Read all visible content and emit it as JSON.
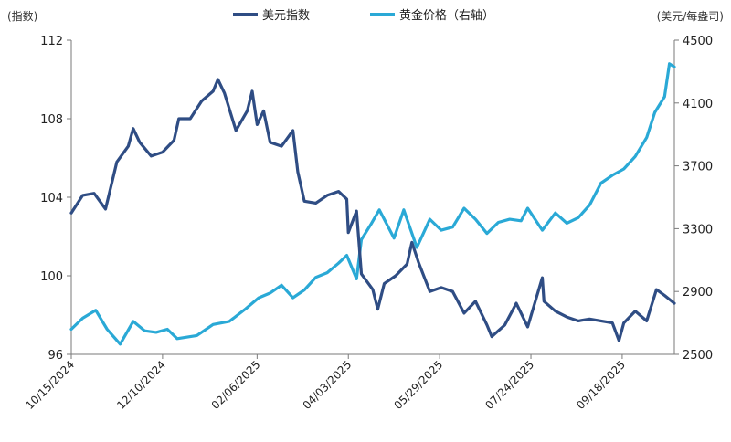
{
  "chart_data": {
    "type": "line",
    "left_axis_unit": "(指数)",
    "right_axis_unit": "(美元/每盎司)",
    "y_left_ticks": [
      96,
      100,
      104,
      108,
      112
    ],
    "y_left_range": [
      96,
      112
    ],
    "y_right_ticks": [
      2500,
      2900,
      3300,
      3700,
      4100,
      4500
    ],
    "y_right_range": [
      2500,
      4500
    ],
    "x_ticks": [
      "10/15/2024",
      "12/10/2024",
      "02/06/2025",
      "04/03/2025",
      "05/29/2025",
      "07/24/2025",
      "09/18/2025"
    ],
    "x_range": [
      "2024-10-15",
      "2025-10-20"
    ],
    "grid": false,
    "legend_position": "top",
    "series": [
      {
        "name": "美元指数",
        "axis": "left",
        "color": "#2f4d84",
        "points": [
          [
            "2024-10-15",
            103.2
          ],
          [
            "2024-10-22",
            104.1
          ],
          [
            "2024-10-29",
            104.2
          ],
          [
            "2024-11-05",
            103.4
          ],
          [
            "2024-11-12",
            105.8
          ],
          [
            "2024-11-19",
            106.6
          ],
          [
            "2024-11-22",
            107.5
          ],
          [
            "2024-11-26",
            106.8
          ],
          [
            "2024-12-03",
            106.1
          ],
          [
            "2024-12-10",
            106.3
          ],
          [
            "2024-12-17",
            106.9
          ],
          [
            "2024-12-20",
            108.0
          ],
          [
            "2024-12-27",
            108.0
          ],
          [
            "2025-01-03",
            108.9
          ],
          [
            "2025-01-10",
            109.4
          ],
          [
            "2025-01-13",
            110.0
          ],
          [
            "2025-01-17",
            109.3
          ],
          [
            "2025-01-24",
            107.4
          ],
          [
            "2025-01-31",
            108.4
          ],
          [
            "2025-02-03",
            109.4
          ],
          [
            "2025-02-06",
            107.7
          ],
          [
            "2025-02-10",
            108.4
          ],
          [
            "2025-02-14",
            106.8
          ],
          [
            "2025-02-21",
            106.6
          ],
          [
            "2025-02-28",
            107.4
          ],
          [
            "2025-03-03",
            105.3
          ],
          [
            "2025-03-07",
            103.8
          ],
          [
            "2025-03-14",
            103.7
          ],
          [
            "2025-03-21",
            104.1
          ],
          [
            "2025-03-28",
            104.3
          ],
          [
            "2025-04-02",
            103.9
          ],
          [
            "2025-04-03",
            102.2
          ],
          [
            "2025-04-08",
            103.3
          ],
          [
            "2025-04-11",
            100.1
          ],
          [
            "2025-04-18",
            99.3
          ],
          [
            "2025-04-21",
            98.3
          ],
          [
            "2025-04-25",
            99.6
          ],
          [
            "2025-05-02",
            100.0
          ],
          [
            "2025-05-09",
            100.6
          ],
          [
            "2025-05-12",
            101.7
          ],
          [
            "2025-05-16",
            100.7
          ],
          [
            "2025-05-23",
            99.2
          ],
          [
            "2025-05-30",
            99.4
          ],
          [
            "2025-06-06",
            99.2
          ],
          [
            "2025-06-13",
            98.1
          ],
          [
            "2025-06-20",
            98.7
          ],
          [
            "2025-06-27",
            97.5
          ],
          [
            "2025-06-30",
            96.9
          ],
          [
            "2025-07-08",
            97.5
          ],
          [
            "2025-07-15",
            98.6
          ],
          [
            "2025-07-22",
            97.4
          ],
          [
            "2025-07-31",
            99.9
          ],
          [
            "2025-08-01",
            98.7
          ],
          [
            "2025-08-08",
            98.2
          ],
          [
            "2025-08-15",
            97.9
          ],
          [
            "2025-08-22",
            97.7
          ],
          [
            "2025-08-29",
            97.8
          ],
          [
            "2025-09-05",
            97.7
          ],
          [
            "2025-09-12",
            97.6
          ],
          [
            "2025-09-16",
            96.7
          ],
          [
            "2025-09-19",
            97.6
          ],
          [
            "2025-09-26",
            98.2
          ],
          [
            "2025-10-03",
            97.7
          ],
          [
            "2025-10-09",
            99.3
          ],
          [
            "2025-10-14",
            99.0
          ],
          [
            "2025-10-20",
            98.6
          ]
        ]
      },
      {
        "name": "黄金价格（右轴）",
        "axis": "right",
        "color": "#2aa9d6",
        "points": [
          [
            "2024-10-15",
            2660
          ],
          [
            "2024-10-22",
            2730
          ],
          [
            "2024-10-30",
            2780
          ],
          [
            "2024-11-06",
            2660
          ],
          [
            "2024-11-14",
            2565
          ],
          [
            "2024-11-22",
            2710
          ],
          [
            "2024-11-29",
            2650
          ],
          [
            "2024-12-06",
            2640
          ],
          [
            "2024-12-13",
            2660
          ],
          [
            "2024-12-19",
            2600
          ],
          [
            "2024-12-31",
            2620
          ],
          [
            "2025-01-10",
            2690
          ],
          [
            "2025-01-20",
            2710
          ],
          [
            "2025-01-30",
            2790
          ],
          [
            "2025-02-07",
            2860
          ],
          [
            "2025-02-14",
            2890
          ],
          [
            "2025-02-21",
            2940
          ],
          [
            "2025-02-28",
            2860
          ],
          [
            "2025-03-07",
            2910
          ],
          [
            "2025-03-14",
            2990
          ],
          [
            "2025-03-21",
            3020
          ],
          [
            "2025-03-28",
            3080
          ],
          [
            "2025-04-02",
            3130
          ],
          [
            "2025-04-08",
            2980
          ],
          [
            "2025-04-11",
            3230
          ],
          [
            "2025-04-17",
            3330
          ],
          [
            "2025-04-22",
            3420
          ],
          [
            "2025-05-01",
            3240
          ],
          [
            "2025-05-07",
            3420
          ],
          [
            "2025-05-15",
            3180
          ],
          [
            "2025-05-23",
            3360
          ],
          [
            "2025-05-30",
            3290
          ],
          [
            "2025-06-06",
            3310
          ],
          [
            "2025-06-13",
            3430
          ],
          [
            "2025-06-20",
            3360
          ],
          [
            "2025-06-27",
            3270
          ],
          [
            "2025-07-04",
            3340
          ],
          [
            "2025-07-11",
            3360
          ],
          [
            "2025-07-18",
            3350
          ],
          [
            "2025-07-22",
            3430
          ],
          [
            "2025-07-31",
            3290
          ],
          [
            "2025-08-08",
            3400
          ],
          [
            "2025-08-15",
            3335
          ],
          [
            "2025-08-22",
            3370
          ],
          [
            "2025-08-29",
            3450
          ],
          [
            "2025-09-05",
            3590
          ],
          [
            "2025-09-12",
            3640
          ],
          [
            "2025-09-19",
            3680
          ],
          [
            "2025-09-26",
            3760
          ],
          [
            "2025-10-03",
            3880
          ],
          [
            "2025-10-08",
            4040
          ],
          [
            "2025-10-14",
            4140
          ],
          [
            "2025-10-17",
            4350
          ],
          [
            "2025-10-20",
            4330
          ]
        ]
      }
    ]
  }
}
